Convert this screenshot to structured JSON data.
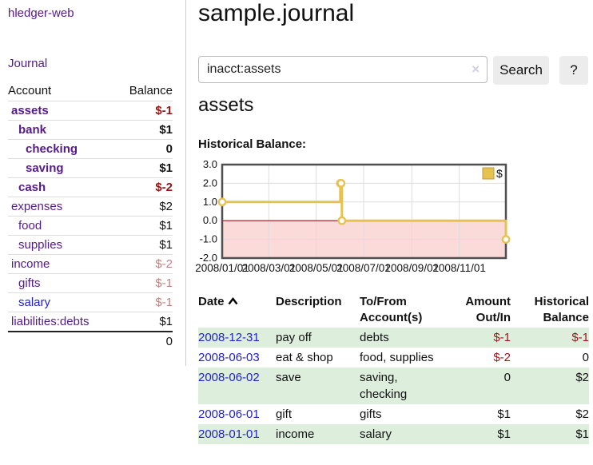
{
  "brand": {
    "label": "hledger-web"
  },
  "nav": {
    "journal": "Journal"
  },
  "sidebar": {
    "columns": {
      "account": "Account",
      "balance": "Balance"
    },
    "accounts": [
      {
        "name": "assets",
        "indent": 1,
        "balance": "$-1",
        "bold": true,
        "balance_style": "negative"
      },
      {
        "name": "bank",
        "indent": 2,
        "balance": "$1",
        "bold": true,
        "balance_style": "normal"
      },
      {
        "name": "checking",
        "indent": 3,
        "balance": "0",
        "bold": true,
        "balance_style": "normal"
      },
      {
        "name": "saving",
        "indent": 3,
        "balance": "$1",
        "bold": true,
        "balance_style": "normal"
      },
      {
        "name": "cash",
        "indent": 2,
        "balance": "$-2",
        "bold": true,
        "balance_style": "negative"
      },
      {
        "name": "expenses",
        "indent": 1,
        "balance": "$2",
        "bold": false,
        "balance_style": "normal"
      },
      {
        "name": "food",
        "indent": 2,
        "balance": "$1",
        "bold": false,
        "balance_style": "normal"
      },
      {
        "name": "supplies",
        "indent": 2,
        "balance": "$1",
        "bold": false,
        "balance_style": "normal"
      },
      {
        "name": "income",
        "indent": 1,
        "balance": "$-2",
        "bold": false,
        "balance_style": "negative-faded"
      },
      {
        "name": "gifts",
        "indent": 2,
        "balance": "$-1",
        "bold": false,
        "balance_style": "negative-faded"
      },
      {
        "name": "salary",
        "indent": 2,
        "balance": "$-1",
        "bold": false,
        "balance_style": "negative-faded",
        "link_style": "blue"
      },
      {
        "name": "liabilities:debts",
        "indent": 1,
        "balance": "$1",
        "bold": false,
        "balance_style": "normal"
      }
    ],
    "total": "0"
  },
  "header": {
    "title": "sample.journal"
  },
  "search": {
    "query": "inacct:assets",
    "clear_icon": "×",
    "button_label": "Search",
    "help_label": "?"
  },
  "account_page": {
    "title": "assets",
    "chart_heading": "Historical Balance:"
  },
  "chart_data": {
    "type": "line",
    "step": true,
    "title": "Historical Balance:",
    "legend": {
      "label": "$",
      "position": "top-right",
      "swatch_color": "#e6c351"
    },
    "series": [
      {
        "name": "$",
        "points": [
          {
            "x": "2008-01-01",
            "y": 1
          },
          {
            "x": "2008-06-01",
            "y": 2
          },
          {
            "x": "2008-06-02",
            "y": 2
          },
          {
            "x": "2008-06-03",
            "y": 0
          },
          {
            "x": "2008-12-31",
            "y": -1
          }
        ]
      }
    ],
    "x_ticks": [
      "2008/01/01",
      "2008/03/01",
      "2008/05/01",
      "2008/07/01",
      "2008/09/01",
      "2008/11/01"
    ],
    "y_ticks": [
      "3.0",
      "2.0",
      "1.0",
      "0.0",
      "-1.0",
      "-2.0"
    ],
    "ylim": [
      -2,
      3
    ],
    "xlim": [
      "2008-01-01",
      "2008-12-31"
    ],
    "grid": true,
    "colors": {
      "line": "#e6c351",
      "marker_fill": "#ffffff",
      "negative_region": "#fbdada",
      "zero_line": "#991111",
      "border": "#4f4f4f",
      "gridline": "#ddd"
    }
  },
  "register": {
    "columns": [
      "Date",
      "Description",
      "To/From Account(s)",
      "Amount Out/In",
      "Historical Balance"
    ],
    "sort": {
      "column": "Date",
      "direction": "ascending"
    },
    "rows": [
      {
        "date": "2008-12-31",
        "description": "pay off",
        "accounts": "debts",
        "amount": "$-1",
        "balance": "$-1",
        "amount_style": "negative",
        "balance_style": "negative"
      },
      {
        "date": "2008-06-03",
        "description": "eat & shop",
        "accounts": "food, supplies",
        "amount": "$-2",
        "balance": "0",
        "amount_style": "negative",
        "balance_style": "normal"
      },
      {
        "date": "2008-06-02",
        "description": "save",
        "accounts": "saving, checking",
        "amount": "0",
        "balance": "$2",
        "amount_style": "normal",
        "balance_style": "normal"
      },
      {
        "date": "2008-06-01",
        "description": "gift",
        "accounts": "gifts",
        "amount": "$1",
        "balance": "$2",
        "amount_style": "normal",
        "balance_style": "normal"
      },
      {
        "date": "2008-01-01",
        "description": "income",
        "accounts": "salary",
        "amount": "$1",
        "balance": "$1",
        "amount_style": "normal",
        "balance_style": "normal"
      }
    ]
  }
}
